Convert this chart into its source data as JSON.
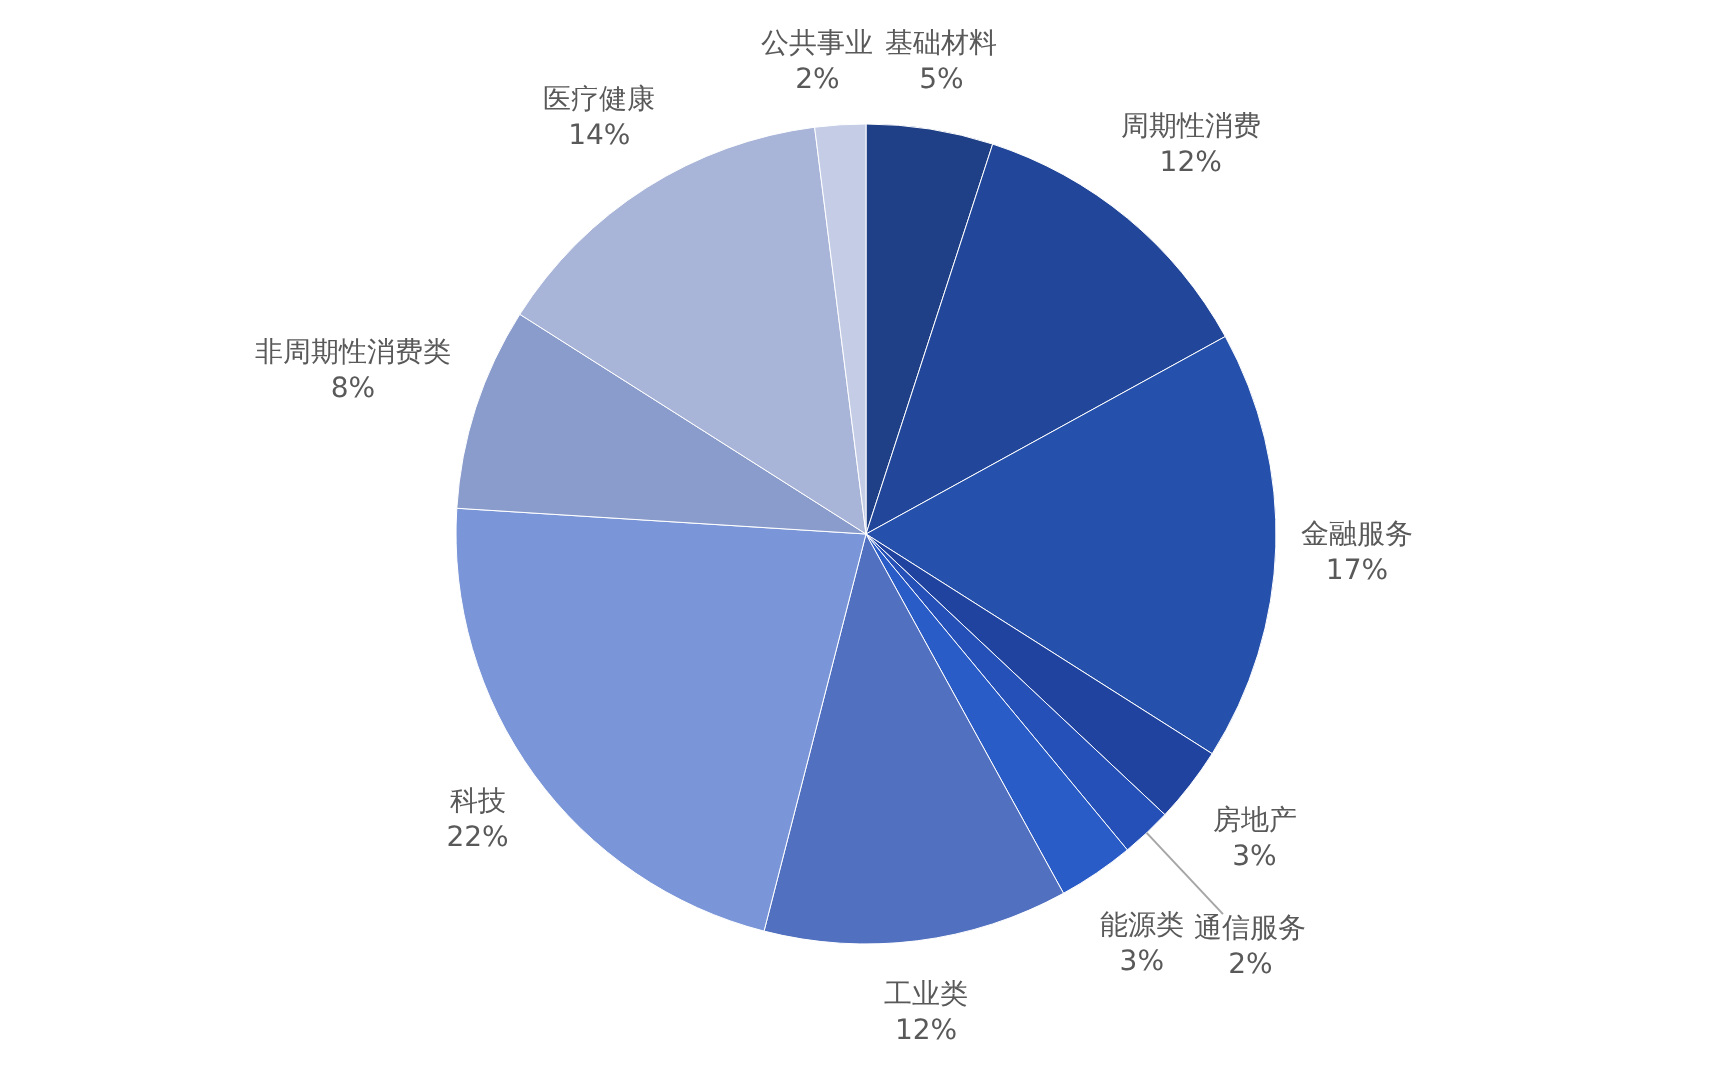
{
  "chart_data": {
    "type": "pie",
    "categories": [
      "基础材料",
      "周期性消费",
      "金融服务",
      "房地产",
      "通信服务",
      "能源类",
      "工业类",
      "科技",
      "非周期性消费类",
      "医疗健康",
      "公共事业"
    ],
    "values": [
      5,
      12,
      17,
      3,
      2,
      3,
      12,
      22,
      8,
      14,
      2
    ],
    "colors": [
      "#1f3f86",
      "#22479a",
      "#2550ab",
      "#2143a0",
      "#2550b8",
      "#2a5cc8",
      "#5170c0",
      "#7a96d8",
      "#8a9ccc",
      "#a8b4d8",
      "#c4cce6"
    ],
    "value_labels": [
      "5%",
      "12%",
      "17%",
      "3%",
      "2%",
      "3%",
      "12%",
      "22%",
      "8%",
      "14%",
      "2%"
    ]
  }
}
